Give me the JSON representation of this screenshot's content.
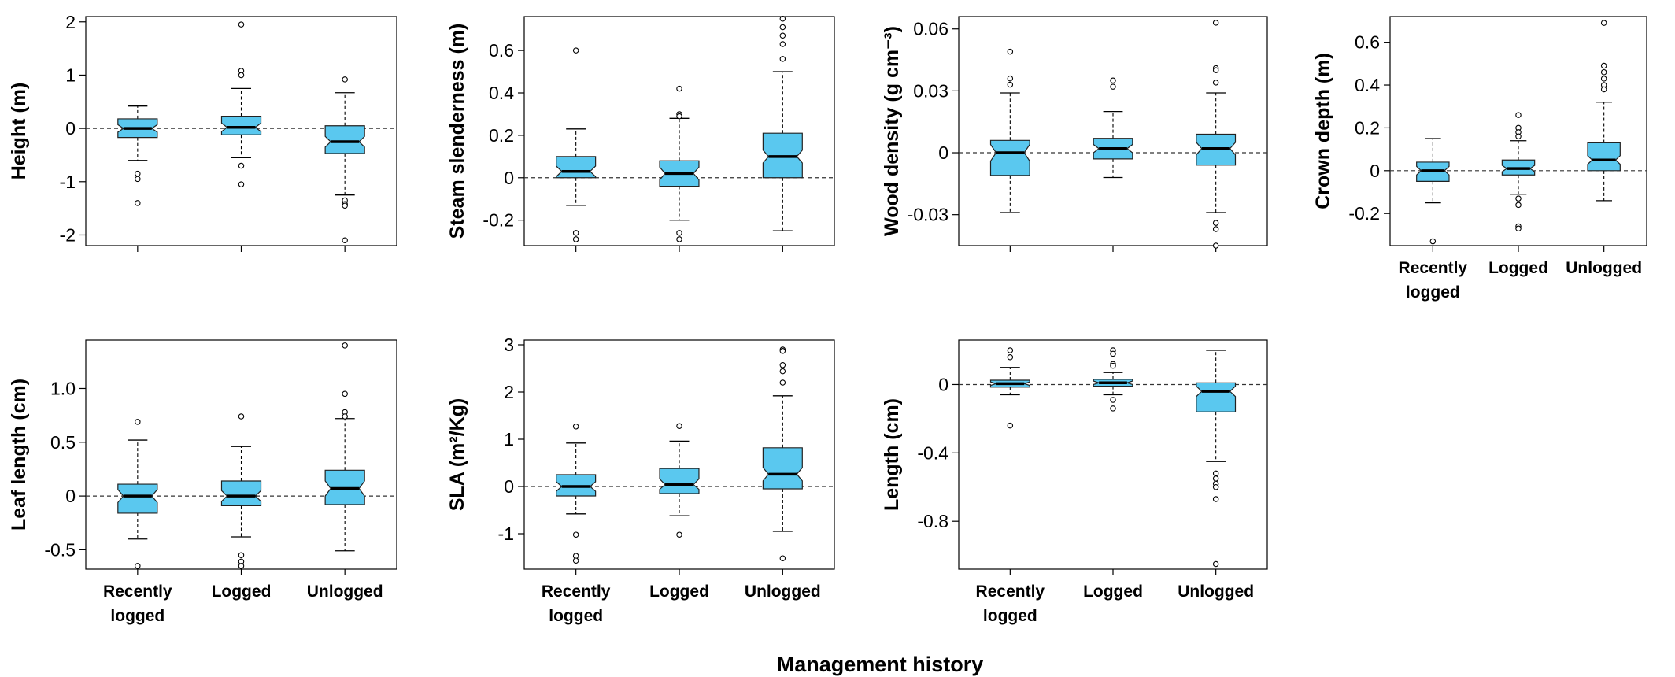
{
  "figure": {
    "xlabel": "Management history",
    "colors": {
      "box_fill": "#5AC8EF",
      "box_stroke": "#222222",
      "reference_line": "#333333"
    }
  },
  "chart_data": [
    {
      "type": "boxplot",
      "id": "height",
      "ylabel": "Height (m)",
      "categories": [
        "Recently logged",
        "Logged",
        "Unlogged"
      ],
      "show_xticklabels": false,
      "ylim": [
        -2.2,
        2.1
      ],
      "yticks": [
        -2,
        -1,
        0,
        1,
        2
      ],
      "yticklabels": [
        "-2",
        "-1",
        "0",
        "1",
        "2"
      ],
      "reference_line": 0,
      "boxes": [
        {
          "whisker_low": -0.6,
          "q1": -0.17,
          "median": 0.0,
          "q3": 0.18,
          "whisker_high": 0.42,
          "notch_low": -0.07,
          "notch_high": 0.07,
          "outliers": [
            -0.85,
            -0.95,
            -1.4
          ]
        },
        {
          "whisker_low": -0.55,
          "q1": -0.12,
          "median": 0.02,
          "q3": 0.23,
          "whisker_high": 0.75,
          "notch_low": -0.06,
          "notch_high": 0.1,
          "outliers": [
            1.95,
            1.08,
            1.0,
            -0.7,
            -1.05
          ]
        },
        {
          "whisker_low": -1.25,
          "q1": -0.47,
          "median": -0.25,
          "q3": 0.05,
          "whisker_high": 0.67,
          "notch_low": -0.35,
          "notch_high": -0.15,
          "outliers": [
            0.92,
            -1.35,
            -1.42,
            -1.45,
            -2.1
          ]
        }
      ]
    },
    {
      "type": "boxplot",
      "id": "steam-slenderness",
      "ylabel": "Steam slenderness (m)",
      "categories": [
        "Recently logged",
        "Logged",
        "Unlogged"
      ],
      "show_xticklabels": false,
      "ylim": [
        -0.32,
        0.76
      ],
      "yticks": [
        -0.2,
        0,
        0.2,
        0.4,
        0.6
      ],
      "yticklabels": [
        "-0.2",
        "0",
        "0.2",
        "0.4",
        "0.6"
      ],
      "reference_line": 0,
      "boxes": [
        {
          "whisker_low": -0.13,
          "q1": 0.0,
          "median": 0.03,
          "q3": 0.1,
          "whisker_high": 0.23,
          "notch_low": 0.005,
          "notch_high": 0.055,
          "outliers": [
            0.6,
            -0.26,
            -0.29
          ]
        },
        {
          "whisker_low": -0.2,
          "q1": -0.04,
          "median": 0.02,
          "q3": 0.08,
          "whisker_high": 0.28,
          "notch_low": -0.01,
          "notch_high": 0.05,
          "outliers": [
            0.42,
            0.3,
            0.29,
            -0.26,
            -0.29
          ]
        },
        {
          "whisker_low": -0.25,
          "q1": 0.0,
          "median": 0.1,
          "q3": 0.21,
          "whisker_high": 0.5,
          "notch_low": 0.07,
          "notch_high": 0.13,
          "outliers": [
            0.75,
            0.71,
            0.67,
            0.63,
            0.56
          ]
        }
      ]
    },
    {
      "type": "boxplot",
      "id": "wood-density",
      "ylabel": "Wood density (g cm⁻³)",
      "categories": [
        "Recently logged",
        "Logged",
        "Unlogged"
      ],
      "show_xticklabels": false,
      "ylim": [
        -0.045,
        0.066
      ],
      "yticks": [
        -0.03,
        0,
        0.03,
        0.06
      ],
      "yticklabels": [
        "-0.03",
        "0",
        "0.03",
        "0.06"
      ],
      "reference_line": 0,
      "boxes": [
        {
          "whisker_low": -0.029,
          "q1": -0.011,
          "median": 0.0,
          "q3": 0.006,
          "whisker_high": 0.029,
          "notch_low": -0.004,
          "notch_high": 0.004,
          "outliers": [
            0.049,
            0.036,
            0.033
          ]
        },
        {
          "whisker_low": -0.012,
          "q1": -0.003,
          "median": 0.002,
          "q3": 0.007,
          "whisker_high": 0.02,
          "notch_low": 0.0,
          "notch_high": 0.004,
          "outliers": [
            0.035,
            0.032
          ]
        },
        {
          "whisker_low": -0.029,
          "q1": -0.006,
          "median": 0.002,
          "q3": 0.009,
          "whisker_high": 0.029,
          "notch_low": -0.001,
          "notch_high": 0.005,
          "outliers": [
            0.063,
            0.041,
            0.04,
            0.034,
            -0.034,
            -0.037,
            -0.045
          ]
        }
      ]
    },
    {
      "type": "boxplot",
      "id": "crown-depth",
      "ylabel": "Crown depth (m)",
      "categories": [
        "Recently logged",
        "Logged",
        "Unlogged"
      ],
      "show_xticklabels": true,
      "ylim": [
        -0.35,
        0.72
      ],
      "yticks": [
        -0.2,
        0,
        0.2,
        0.4,
        0.6
      ],
      "yticklabels": [
        "-0.2",
        "0",
        "0.2",
        "0.4",
        "0.6"
      ],
      "reference_line": 0,
      "boxes": [
        {
          "whisker_low": -0.15,
          "q1": -0.05,
          "median": 0.0,
          "q3": 0.04,
          "whisker_high": 0.15,
          "notch_low": -0.02,
          "notch_high": 0.02,
          "outliers": [
            -0.33
          ]
        },
        {
          "whisker_low": -0.11,
          "q1": -0.02,
          "median": 0.01,
          "q3": 0.05,
          "whisker_high": 0.14,
          "notch_low": -0.005,
          "notch_high": 0.025,
          "outliers": [
            0.26,
            0.2,
            0.18,
            0.16,
            -0.13,
            -0.16,
            -0.26,
            -0.27
          ]
        },
        {
          "whisker_low": -0.14,
          "q1": 0.0,
          "median": 0.05,
          "q3": 0.13,
          "whisker_high": 0.32,
          "notch_low": 0.03,
          "notch_high": 0.07,
          "outliers": [
            0.69,
            0.49,
            0.46,
            0.43,
            0.4,
            0.38
          ]
        }
      ]
    },
    {
      "type": "boxplot",
      "id": "leaf-length",
      "ylabel": "Leaf length (cm)",
      "categories": [
        "Recently logged",
        "Logged",
        "Unlogged"
      ],
      "show_xticklabels": true,
      "ylim": [
        -0.68,
        1.45
      ],
      "yticks": [
        -0.5,
        0,
        0.5,
        1.0
      ],
      "yticklabels": [
        "-0.5",
        "0",
        "0.5",
        "1.0"
      ],
      "reference_line": 0,
      "boxes": [
        {
          "whisker_low": -0.4,
          "q1": -0.16,
          "median": 0.0,
          "q3": 0.11,
          "whisker_high": 0.52,
          "notch_low": -0.06,
          "notch_high": 0.06,
          "outliers": [
            0.69,
            -0.65
          ]
        },
        {
          "whisker_low": -0.38,
          "q1": -0.09,
          "median": 0.0,
          "q3": 0.14,
          "whisker_high": 0.46,
          "notch_low": -0.05,
          "notch_high": 0.05,
          "outliers": [
            0.74,
            -0.55,
            -0.61,
            -0.65
          ]
        },
        {
          "whisker_low": -0.51,
          "q1": -0.08,
          "median": 0.07,
          "q3": 0.24,
          "whisker_high": 0.72,
          "notch_low": 0.0,
          "notch_high": 0.14,
          "outliers": [
            1.4,
            0.95,
            0.78,
            0.74
          ]
        }
      ]
    },
    {
      "type": "boxplot",
      "id": "sla",
      "ylabel": "SLA (m²/Kg)",
      "categories": [
        "Recently logged",
        "Logged",
        "Unlogged"
      ],
      "show_xticklabels": true,
      "ylim": [
        -1.75,
        3.1
      ],
      "yticks": [
        -1,
        0,
        1,
        2,
        3
      ],
      "yticklabels": [
        "-1",
        "0",
        "1",
        "2",
        "3"
      ],
      "reference_line": 0,
      "boxes": [
        {
          "whisker_low": -0.58,
          "q1": -0.2,
          "median": 0.0,
          "q3": 0.25,
          "whisker_high": 0.92,
          "notch_low": -0.1,
          "notch_high": 0.1,
          "outliers": [
            1.27,
            -1.02,
            -1.47,
            -1.57
          ]
        },
        {
          "whisker_low": -0.62,
          "q1": -0.15,
          "median": 0.04,
          "q3": 0.38,
          "whisker_high": 0.96,
          "notch_low": -0.06,
          "notch_high": 0.16,
          "outliers": [
            1.28,
            -1.02
          ]
        },
        {
          "whisker_low": -0.95,
          "q1": -0.05,
          "median": 0.26,
          "q3": 0.82,
          "whisker_high": 1.92,
          "notch_low": 0.12,
          "notch_high": 0.4,
          "outliers": [
            2.9,
            2.87,
            2.57,
            2.44,
            2.2,
            -1.52
          ]
        }
      ]
    },
    {
      "type": "boxplot",
      "id": "length",
      "ylabel": "Length (cm)",
      "categories": [
        "Recently logged",
        "Logged",
        "Unlogged"
      ],
      "show_xticklabels": true,
      "ylim": [
        -1.08,
        0.26
      ],
      "yticks": [
        -0.8,
        -0.4,
        0
      ],
      "yticklabels": [
        "-0.8",
        "-0.4",
        "0"
      ],
      "reference_line": 0,
      "boxes": [
        {
          "whisker_low": -0.06,
          "q1": -0.015,
          "median": 0.005,
          "q3": 0.025,
          "whisker_high": 0.1,
          "notch_low": -0.005,
          "notch_high": 0.015,
          "outliers": [
            0.2,
            0.16,
            -0.24
          ]
        },
        {
          "whisker_low": -0.06,
          "q1": -0.01,
          "median": 0.01,
          "q3": 0.03,
          "whisker_high": 0.07,
          "notch_low": 0.0,
          "notch_high": 0.02,
          "outliers": [
            0.2,
            0.18,
            0.12,
            0.11,
            -0.09,
            -0.14
          ]
        },
        {
          "whisker_low": -0.45,
          "q1": -0.16,
          "median": -0.04,
          "q3": 0.01,
          "whisker_high": 0.2,
          "notch_low": -0.07,
          "notch_high": -0.01,
          "outliers": [
            -0.52,
            -0.55,
            -0.58,
            -0.6,
            -0.67,
            -1.05
          ]
        }
      ]
    }
  ]
}
